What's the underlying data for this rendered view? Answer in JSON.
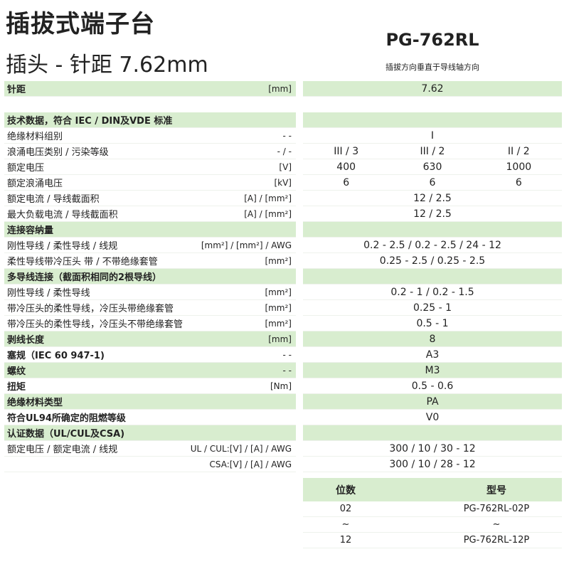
{
  "header": {
    "title": "插拔式端子台",
    "subtitle": "插头 - 针距  7.62mm",
    "model": "PG-762RL",
    "caption": "插拔方向垂直于导线轴方向"
  },
  "accent_color": "#d8edcf",
  "rows": [
    {
      "label": "针距",
      "unit": "[mm]",
      "value": "7.62",
      "green": true,
      "bold": true
    },
    {
      "label": "",
      "unit": "",
      "value": "",
      "blank": true
    },
    {
      "label": "技术数据，符合 IEC / DIN及VDE 标准",
      "unit": "",
      "value": "",
      "green": true,
      "bold": true
    },
    {
      "label": "绝缘材料组别",
      "unit": "- -",
      "value": "I"
    },
    {
      "label": "浪涌电压类别 / 污染等级",
      "unit": "- / -",
      "values": [
        "III / 3",
        "III / 2",
        "II / 2"
      ]
    },
    {
      "label": "额定电压",
      "unit": "[V]",
      "values": [
        "400",
        "630",
        "1000"
      ]
    },
    {
      "label": "额定浪涌电压",
      "unit": "[kV]",
      "values": [
        "6",
        "6",
        "6"
      ]
    },
    {
      "label": "额定电流 / 导线截面积",
      "unit": "[A] / [mm²]",
      "value": "12 / 2.5"
    },
    {
      "label": "最大负载电流 / 导线截面积",
      "unit": "[A] / [mm²]",
      "value": "12 / 2.5"
    },
    {
      "label": "连接容纳量",
      "unit": "",
      "value": "",
      "green": true,
      "bold": true
    },
    {
      "label": "刚性导线 / 柔性导线 / 线规",
      "unit": "[mm²] / [mm²] / AWG",
      "value": "0.2 - 2.5 / 0.2 - 2.5 / 24 - 12"
    },
    {
      "label": "柔性导线带冷压头 带 / 不带绝缘套管",
      "unit": "[mm²]",
      "value": "0.25 - 2.5 / 0.25 - 2.5"
    },
    {
      "label": "多导线连接（截面积相同的2根导线）",
      "unit": "",
      "value": "",
      "green": true,
      "bold": true
    },
    {
      "label": "刚性导线 / 柔性导线",
      "unit": "[mm²]",
      "value": "0.2 - 1 / 0.2 - 1.5"
    },
    {
      "label": "带冷压头的柔性导线，冷压头带绝缘套管",
      "unit": "[mm²]",
      "value": "0.25 - 1"
    },
    {
      "label": "带冷压头的柔性导线，冷压头不带绝缘套管",
      "unit": "[mm²]",
      "value": "0.5 - 1"
    },
    {
      "label": "剥线长度",
      "unit": "[mm]",
      "value": "8",
      "green": true,
      "bold": true
    },
    {
      "label": "塞规（IEC 60 947-1)",
      "unit": "- -",
      "value": "A3",
      "bold": true
    },
    {
      "label": "螺纹",
      "unit": "- -",
      "value": "M3",
      "green": true,
      "bold": true
    },
    {
      "label": "扭矩",
      "unit": "[Nm]",
      "value": "0.5 - 0.6",
      "bold": true
    },
    {
      "label": "绝缘材料类型",
      "unit": "",
      "value": "PA",
      "green": true,
      "bold": true
    },
    {
      "label": "符合UL94所确定的阻燃等级",
      "unit": "",
      "value": "V0",
      "bold": true
    },
    {
      "label": "认证数据（UL/CUL及CSA)",
      "unit": "",
      "value": "",
      "green": true,
      "bold": true
    },
    {
      "label": "额定电压 / 额定电流 / 线规",
      "unit": "UL / CUL:[V] / [A] / AWG",
      "value": "300 / 10 / 30 - 12"
    },
    {
      "label": "",
      "unit": "CSA:[V] / [A] / AWG",
      "value": "300 / 10 / 28 - 12"
    }
  ],
  "models": {
    "headers": [
      "位数",
      "型号"
    ],
    "rows": [
      [
        "02",
        "PG-762RL-02P"
      ],
      [
        "~",
        "~"
      ],
      [
        "12",
        "PG-762RL-12P"
      ]
    ]
  }
}
